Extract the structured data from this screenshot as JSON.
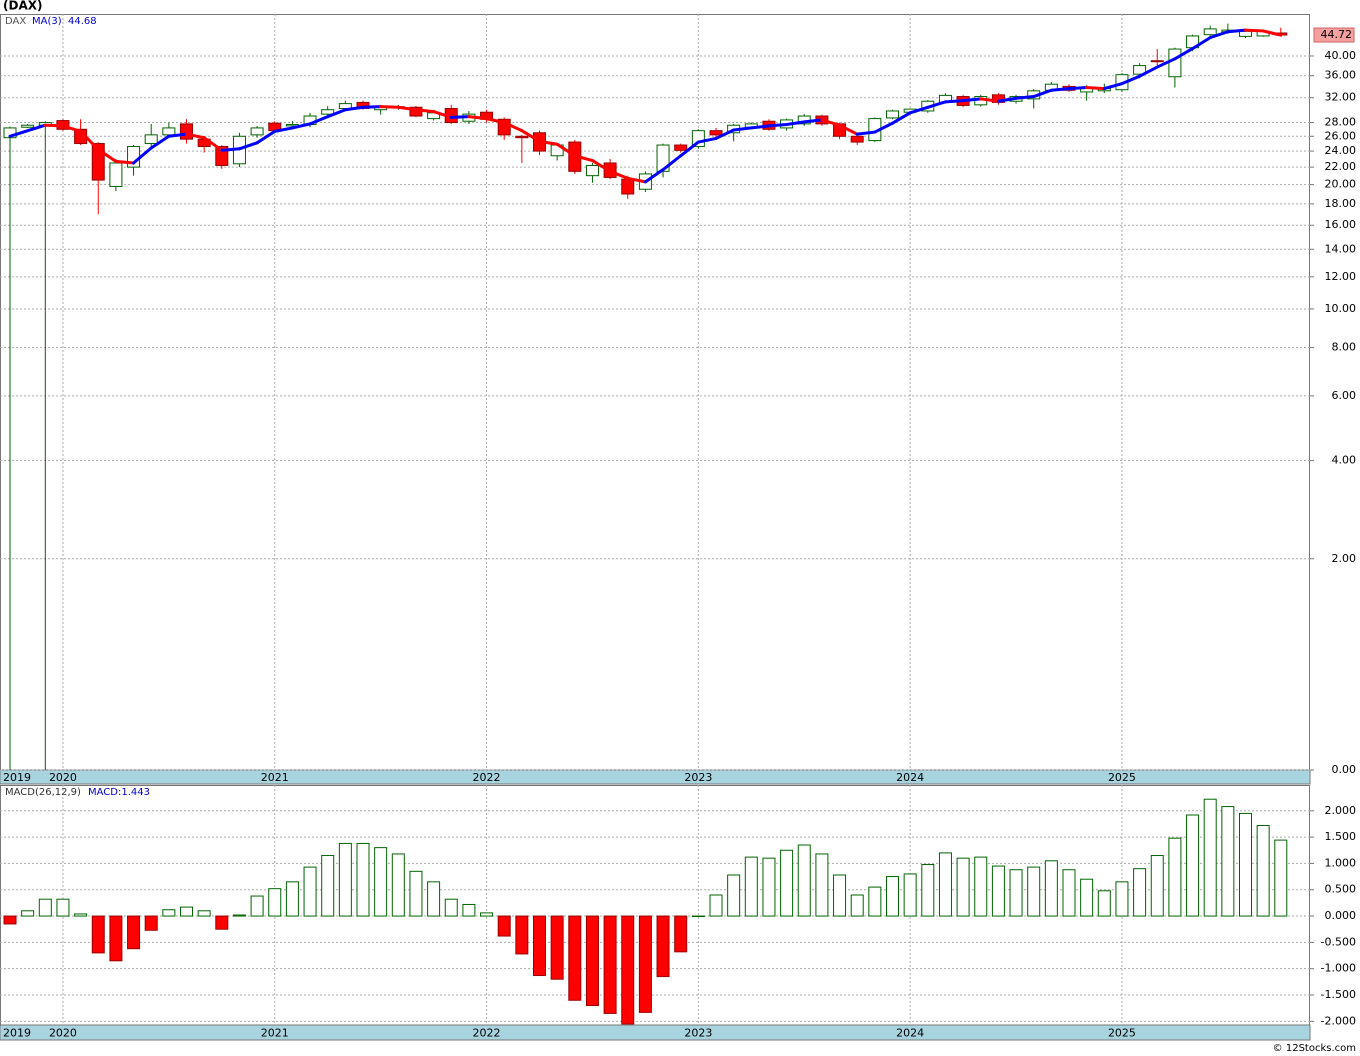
{
  "chart_data": [
    {
      "type": "candlestick",
      "title": "(DAX)",
      "symbol": "DAX",
      "categories": [
        "2019",
        null,
        null,
        "2020",
        null,
        null,
        null,
        null,
        null,
        null,
        null,
        null,
        null,
        null,
        null,
        "2021",
        null,
        null,
        null,
        null,
        null,
        null,
        null,
        null,
        null,
        null,
        null,
        "2022",
        null,
        null,
        null,
        null,
        null,
        null,
        null,
        null,
        null,
        null,
        null,
        "2023",
        null,
        null,
        null,
        null,
        null,
        null,
        null,
        null,
        null,
        null,
        null,
        "2024",
        null,
        null,
        null,
        null,
        null,
        null,
        null,
        null,
        null,
        null,
        null,
        "2025",
        null,
        null,
        null,
        null,
        null,
        null,
        null,
        null,
        null
      ],
      "open": [
        25.8,
        27.3,
        27.6,
        28.3,
        27.0,
        25.0,
        19.8,
        22.0,
        25.0,
        26.2,
        27.8,
        25.6,
        24.6,
        22.4,
        26.2,
        27.9,
        27.5,
        27.7,
        29.3,
        30.2,
        31.2,
        30.0,
        30.4,
        30.4,
        28.6,
        30.2,
        28.2,
        29.6,
        28.5,
        26.0,
        26.5,
        23.4,
        25.2,
        21.0,
        22.5,
        20.6,
        19.5,
        21.5,
        24.8,
        24.6,
        26.8,
        26.5,
        27.3,
        28.2,
        27.2,
        27.8,
        29.0,
        27.8,
        26.0,
        25.4,
        28.7,
        29.6,
        29.8,
        31.2,
        32.2,
        30.8,
        32.5,
        31.4,
        31.8,
        33.3,
        34.0,
        33.0,
        33.2,
        33.4,
        36.3,
        39.0,
        35.8,
        41.8,
        44.8,
        45.5,
        44.4,
        44.5,
        45.2
      ],
      "high": [
        27.4,
        27.8,
        28.2,
        28.5,
        28.5,
        25.2,
        23.0,
        24.8,
        27.8,
        28.0,
        28.5,
        26.0,
        24.8,
        26.5,
        27.5,
        28.2,
        28.2,
        29.5,
        30.6,
        31.5,
        31.5,
        30.8,
        30.8,
        30.6,
        30.0,
        30.8,
        29.8,
        30.0,
        28.8,
        26.2,
        26.8,
        25.0,
        25.5,
        22.5,
        23.0,
        21.0,
        21.5,
        25.0,
        25.0,
        27.0,
        27.2,
        27.8,
        28.0,
        28.5,
        28.6,
        29.3,
        29.2,
        28.0,
        26.2,
        28.8,
        30.0,
        30.2,
        31.6,
        32.8,
        32.5,
        32.5,
        32.8,
        32.5,
        33.5,
        34.8,
        34.4,
        34.2,
        34.5,
        36.5,
        38.5,
        41.5,
        41.8,
        44.8,
        47.0,
        47.5,
        46.0,
        46.0,
        46.5
      ],
      "low": [
        0,
        27.2,
        0,
        26.8,
        24.8,
        17.0,
        19.3,
        21.0,
        24.5,
        25.8,
        25.0,
        23.8,
        21.8,
        22.0,
        25.8,
        26.5,
        27.0,
        27.3,
        29.0,
        30.0,
        30.0,
        29.2,
        30.0,
        28.8,
        28.3,
        27.8,
        27.8,
        28.0,
        25.5,
        22.5,
        23.5,
        22.8,
        21.2,
        20.2,
        20.6,
        18.5,
        19.2,
        20.8,
        23.8,
        24.3,
        25.8,
        25.3,
        27.0,
        26.8,
        26.8,
        27.5,
        27.5,
        25.6,
        24.8,
        25.2,
        28.5,
        29.2,
        29.5,
        31.0,
        30.4,
        30.5,
        30.8,
        31.0,
        30.2,
        33.0,
        33.0,
        31.5,
        32.8,
        33.0,
        35.5,
        38.0,
        33.8,
        41.0,
        44.4,
        45.0,
        44.0,
        44.3,
        44.6
      ],
      "close": [
        27.2,
        27.6,
        28.0,
        27.0,
        25.0,
        20.5,
        22.5,
        24.6,
        26.2,
        27.2,
        25.6,
        24.6,
        22.2,
        26.0,
        27.2,
        26.8,
        27.7,
        29.0,
        30.0,
        31.0,
        30.2,
        30.4,
        30.5,
        29.0,
        29.5,
        28.0,
        29.3,
        28.5,
        26.2,
        25.8,
        24.0,
        24.8,
        21.5,
        22.2,
        20.8,
        19.0,
        21.2,
        24.8,
        24.1,
        26.8,
        26.2,
        27.6,
        27.8,
        27.0,
        28.4,
        29.0,
        27.8,
        26.0,
        25.2,
        28.6,
        29.8,
        30.1,
        31.4,
        32.4,
        30.7,
        32.2,
        31.2,
        32.2,
        33.2,
        34.4,
        33.3,
        33.8,
        33.6,
        36.2,
        38.0,
        38.8,
        41.5,
        44.5,
        46.2,
        45.9,
        45.6,
        45.6,
        44.72
      ],
      "up_color": "#006400",
      "down_color": "#ff0000",
      "series": [
        {
          "name": "MA(3)",
          "color": "#0000ff",
          "down_color": "#ff0000",
          "values": [
            26.0,
            26.8,
            27.6,
            27.5,
            26.7,
            24.2,
            22.7,
            22.5,
            24.4,
            26.0,
            26.3,
            25.8,
            24.1,
            24.3,
            25.1,
            26.7,
            27.2,
            27.8,
            28.9,
            30.0,
            30.4,
            30.5,
            30.4,
            30.0,
            29.7,
            28.8,
            28.9,
            28.6,
            28.0,
            26.8,
            25.3,
            24.9,
            23.4,
            22.8,
            21.5,
            20.7,
            20.3,
            21.7,
            23.4,
            25.2,
            25.7,
            26.9,
            27.2,
            27.5,
            27.7,
            28.1,
            28.4,
            27.6,
            26.3,
            26.6,
            27.9,
            29.5,
            30.4,
            31.3,
            31.5,
            31.8,
            31.4,
            31.9,
            32.2,
            33.3,
            33.6,
            33.8,
            33.6,
            34.5,
            35.9,
            37.7,
            39.4,
            41.6,
            44.1,
            45.5,
            45.9,
            45.7,
            44.68
          ]
        }
      ],
      "ylim": [
        0,
        50
      ],
      "yscale": "log1p",
      "yticks": [
        {
          "value": 40,
          "label": "40.00"
        },
        {
          "value": 36,
          "label": "36.00"
        },
        {
          "value": 32,
          "label": "32.00"
        },
        {
          "value": 28,
          "label": "28.00"
        },
        {
          "value": 26,
          "label": "26.00"
        },
        {
          "value": 24,
          "label": "24.00"
        },
        {
          "value": 22,
          "label": "22.00"
        },
        {
          "value": 20,
          "label": "20.00"
        },
        {
          "value": 18,
          "label": "18.00"
        },
        {
          "value": 16,
          "label": "16.00"
        },
        {
          "value": 14,
          "label": "14.00"
        },
        {
          "value": 12,
          "label": "12.00"
        },
        {
          "value": 10,
          "label": "10.00"
        },
        {
          "value": 8,
          "label": "8.00"
        },
        {
          "value": 6,
          "label": "6.00"
        },
        {
          "value": 4,
          "label": "4.00"
        },
        {
          "value": 2,
          "label": "2.00"
        },
        {
          "value": 0,
          "label": "0.00"
        }
      ],
      "grid": true
    },
    {
      "type": "bar",
      "title": "MACD(26,12,9)",
      "value_label": "MACD:1.443",
      "categories": [
        "2019",
        null,
        null,
        "2020",
        null,
        null,
        null,
        null,
        null,
        null,
        null,
        null,
        null,
        null,
        null,
        "2021",
        null,
        null,
        null,
        null,
        null,
        null,
        null,
        null,
        null,
        null,
        null,
        "2022",
        null,
        null,
        null,
        null,
        null,
        null,
        null,
        null,
        null,
        null,
        null,
        "2023",
        null,
        null,
        null,
        null,
        null,
        null,
        null,
        null,
        null,
        null,
        null,
        "2024",
        null,
        null,
        null,
        null,
        null,
        null,
        null,
        null,
        null,
        null,
        null,
        "2025",
        null,
        null,
        null,
        null,
        null,
        null,
        null,
        null,
        null
      ],
      "values": [
        -0.15,
        0.1,
        0.32,
        0.32,
        0.04,
        -0.7,
        -0.85,
        -0.62,
        -0.27,
        0.12,
        0.17,
        0.1,
        -0.25,
        0.02,
        0.38,
        0.52,
        0.65,
        0.93,
        1.15,
        1.38,
        1.38,
        1.3,
        1.18,
        0.85,
        0.65,
        0.32,
        0.22,
        0.06,
        -0.38,
        -0.72,
        -1.13,
        -1.2,
        -1.6,
        -1.7,
        -1.85,
        -2.05,
        -1.83,
        -1.15,
        -0.68,
        0.0,
        0.4,
        0.78,
        1.12,
        1.1,
        1.25,
        1.35,
        1.18,
        0.78,
        0.4,
        0.55,
        0.75,
        0.8,
        0.98,
        1.2,
        1.1,
        1.12,
        0.95,
        0.88,
        0.93,
        1.05,
        0.88,
        0.7,
        0.48,
        0.65,
        0.9,
        1.15,
        1.48,
        1.92,
        2.22,
        2.08,
        1.95,
        1.72,
        1.443
      ],
      "up_color": "#006400",
      "down_color": "#ff0000",
      "ylim": [
        -2.07,
        2.49
      ],
      "yticks": [
        {
          "value": 2,
          "label": "2.000"
        },
        {
          "value": 1.5,
          "label": "1.500"
        },
        {
          "value": 1,
          "label": "1.000"
        },
        {
          "value": 0.5,
          "label": "0.500"
        },
        {
          "value": 0,
          "label": "0.000"
        },
        {
          "value": -0.5,
          "label": "-0.500"
        },
        {
          "value": -1,
          "label": "-1.000"
        },
        {
          "value": -1.5,
          "label": "-1.500"
        },
        {
          "value": -2,
          "label": "-2.000"
        }
      ],
      "grid": true
    }
  ],
  "footer": "© 12Stocks.com"
}
